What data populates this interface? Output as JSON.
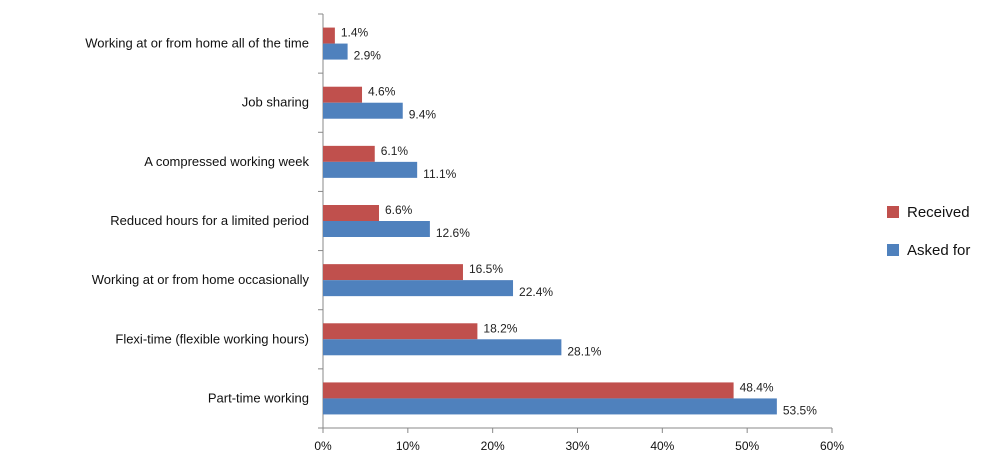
{
  "chart_data": {
    "type": "bar",
    "orientation": "horizontal",
    "categories": [
      "Working at or from home all of the time",
      "Job sharing",
      "A compressed working week",
      "Reduced hours for a limited period",
      "Working at or from home occasionally",
      "Flexi-time (flexible working hours)",
      "Part-time working"
    ],
    "series": [
      {
        "name": "Received",
        "color": "#c0504d",
        "values": [
          1.4,
          4.6,
          6.1,
          6.6,
          16.5,
          18.2,
          48.4
        ],
        "labels": [
          "1.4%",
          "4.6%",
          "6.1%",
          "6.6%",
          "16.5%",
          "18.2%",
          "48.4%"
        ]
      },
      {
        "name": "Asked for",
        "color": "#4f81bd",
        "values": [
          2.9,
          9.4,
          11.1,
          12.6,
          22.4,
          28.1,
          53.5
        ],
        "labels": [
          "2.9%",
          "9.4%",
          "11.1%",
          "12.6%",
          "22.4%",
          "28.1%",
          "53.5%"
        ]
      }
    ],
    "xlim": [
      0,
      60
    ],
    "x_ticks": [
      "0%",
      "10%",
      "20%",
      "30%",
      "40%",
      "50%",
      "60%"
    ],
    "legend_position": "right",
    "grid": false
  }
}
